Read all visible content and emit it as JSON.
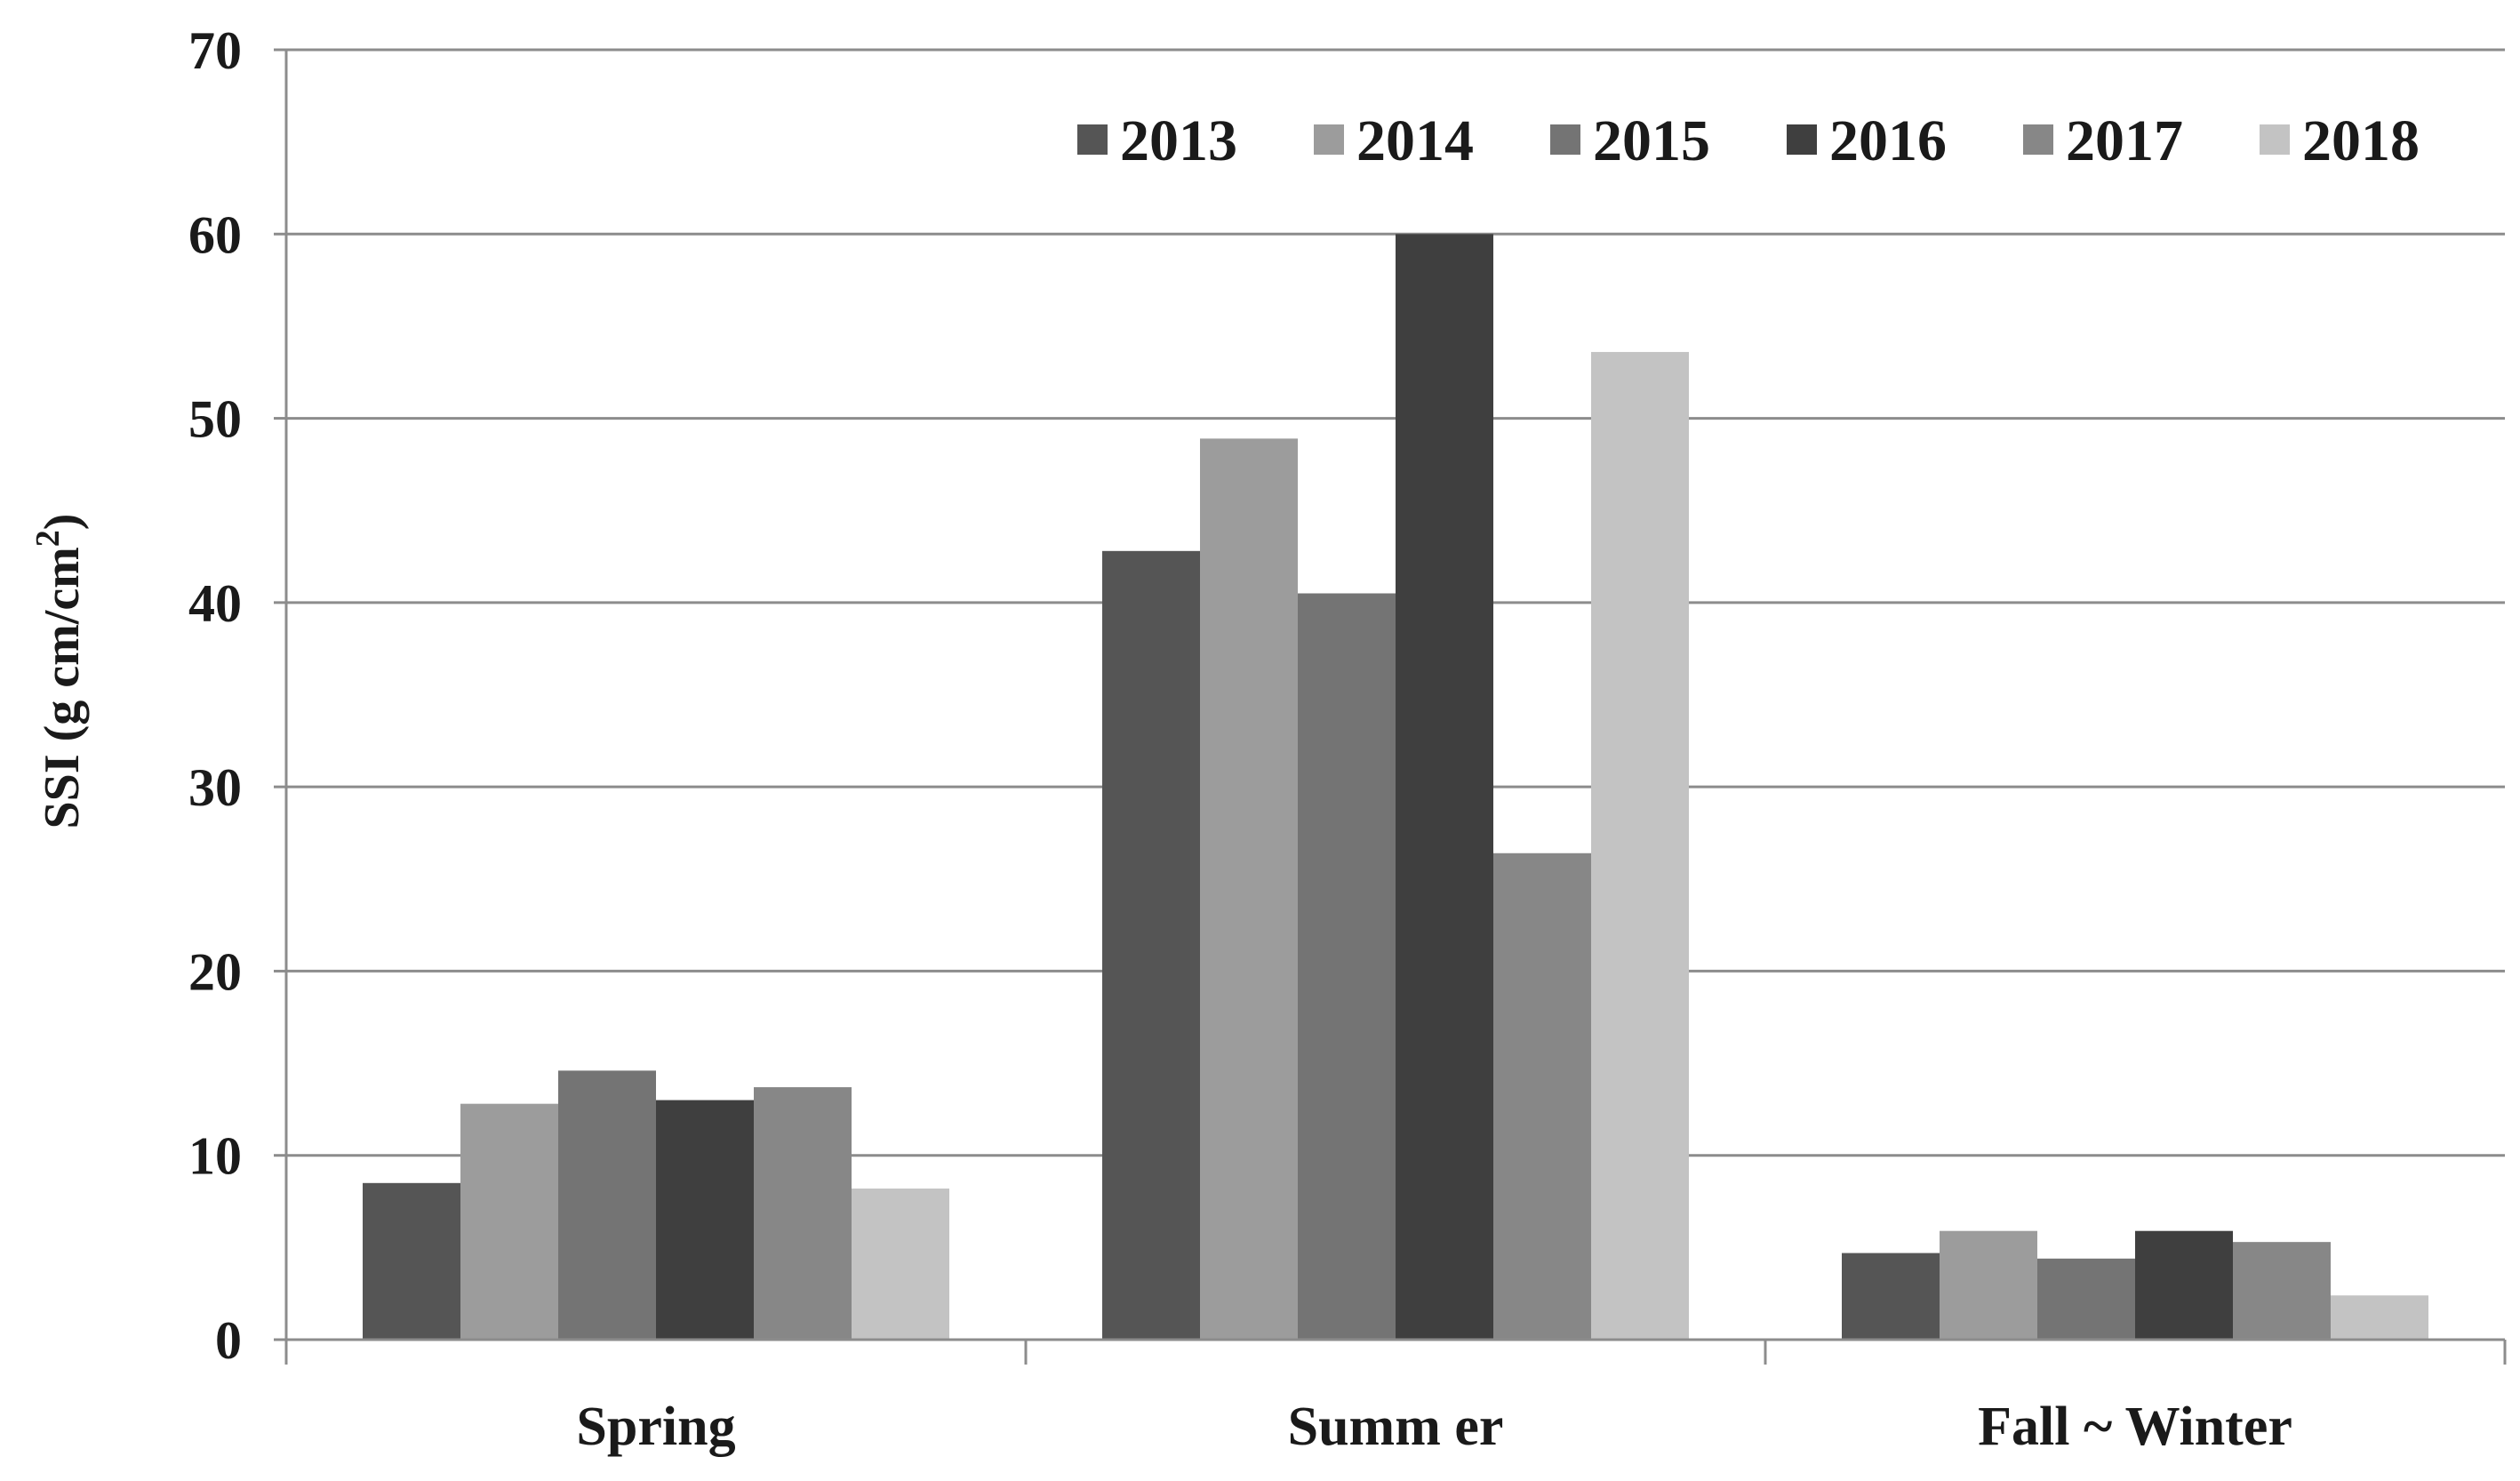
{
  "chart_data": {
    "type": "bar",
    "title": "",
    "ylabel": "SSI (g cm/cm",
    "ylabel_superscript": "2",
    "ylabel_close": ")",
    "xlabel": "",
    "ylim": [
      0,
      70
    ],
    "yticks": [
      "0",
      "10",
      "20",
      "30",
      "40",
      "50",
      "60",
      "70"
    ],
    "grid": true,
    "legend_position": "top-right",
    "categories": [
      "Spring",
      "Summ er",
      "Fall ~ Winter"
    ],
    "series": [
      {
        "name": "2013",
        "color": "#555555",
        "values": [
          8.5,
          42.8,
          4.7
        ]
      },
      {
        "name": "2014",
        "color": "#9c9c9c",
        "values": [
          12.8,
          48.9,
          5.9
        ]
      },
      {
        "name": "2015",
        "color": "#747474",
        "values": [
          14.6,
          40.5,
          4.4
        ]
      },
      {
        "name": "2016",
        "color": "#3f3f3f",
        "values": [
          13.0,
          60.0,
          5.9
        ]
      },
      {
        "name": "2017",
        "color": "#878787",
        "values": [
          13.7,
          26.4,
          5.3
        ]
      },
      {
        "name": "2018",
        "color": "#c3c3c3",
        "values": [
          8.2,
          53.6,
          2.4
        ]
      }
    ]
  }
}
